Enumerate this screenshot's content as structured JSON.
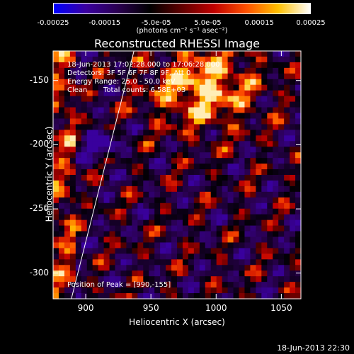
{
  "chart_data": {
    "type": "heatmap",
    "title": "Reconstructed RHESSI Image",
    "xlabel": "Heliocentric X (arcsec)",
    "ylabel": "Heliocentric Y (arcsec)",
    "xlim": [
      875,
      1065
    ],
    "ylim": [
      -320,
      -127
    ],
    "xticks": [
      "900",
      "950",
      "1000",
      "1050"
    ],
    "xtick_values": [
      900,
      950,
      1000,
      1050
    ],
    "yticks": [
      "-150",
      "-200",
      "-250",
      "-300"
    ],
    "ytick_values": [
      -150,
      -200,
      -250,
      -300
    ],
    "colorbar": {
      "range": [
        -0.00025,
        0.00025
      ],
      "tick_labels": [
        "-0.00025",
        "-0.00015",
        "-5.0e-05",
        "5.0e-05",
        "0.00015",
        "0.00025"
      ],
      "tick_values": [
        -0.00025,
        -0.00015,
        -5e-05,
        5e-05,
        0.00015,
        0.00025
      ],
      "unit_label": "(photons cm⁻² s⁻¹ asec⁻²)"
    },
    "annotations": {
      "time_range": "18-Jun-2013 17:02:28.000 to 17:06:28.000",
      "detectors": "Detectors: 3F 5F 6F 7F 8F 9F, Att 0",
      "energy": "Energy Range: 25.0 - 50.0 keV",
      "method": "Clean",
      "counts": "Total counts: 6.58E+03",
      "peak": "Position of Peak = [990,-155]"
    },
    "peak": [
      990,
      -155
    ],
    "limb_line": [
      [
        889,
        -320
      ],
      [
        937,
        -127
      ]
    ]
  },
  "timestamp": "18-Jun-2013 22:30",
  "colors": {
    "background": "#000000",
    "foreground": "#ffffff",
    "colormap": [
      "#0000ff",
      "#3a00a0",
      "#2a0050",
      "#000000",
      "#600000",
      "#c00000",
      "#ff5000",
      "#ffc000",
      "#ffffff"
    ]
  }
}
